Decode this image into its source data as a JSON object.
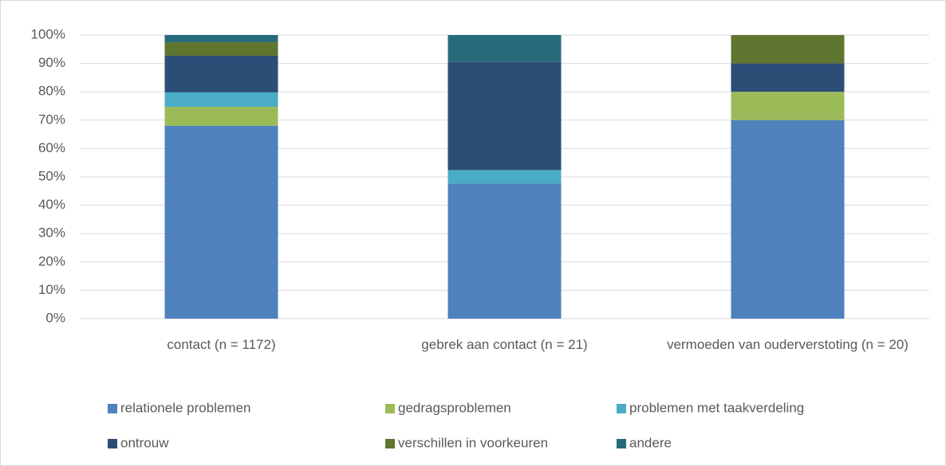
{
  "chart_data": {
    "type": "stacked_bar",
    "categories": [
      "contact (n = 1172)",
      "gebrek aan contact (n = 21)",
      "vermoeden van ouderverstoting (n = 20)"
    ],
    "series": [
      {
        "name": "relationele problemen",
        "color": "#4f81bd",
        "values": [
          68.0,
          47.6,
          70
        ]
      },
      {
        "name": "gedragsproblemen",
        "color": "#9bbb59",
        "values": [
          6.7,
          0,
          10
        ]
      },
      {
        "name": "problemen met taakverdeling",
        "color": "#4bacc6",
        "values": [
          5.1,
          4.8,
          0
        ]
      },
      {
        "name": "ontrouw",
        "color": "#2c4d75",
        "values": [
          12.9,
          38.1,
          10
        ]
      },
      {
        "name": "verschillen in voorkeuren",
        "color": "#5f7530",
        "values": [
          4.8,
          0,
          10
        ]
      },
      {
        "name": "andere",
        "color": "#276a7c",
        "values": [
          2.5,
          9.5,
          0
        ]
      }
    ],
    "ylim": [
      0,
      100
    ],
    "yticks": [
      {
        "value": 0,
        "label": "0%"
      },
      {
        "value": 10,
        "label": "10%"
      },
      {
        "value": 20,
        "label": "20%"
      },
      {
        "value": 30,
        "label": "30%"
      },
      {
        "value": 40,
        "label": "40%"
      },
      {
        "value": 50,
        "label": "50%"
      },
      {
        "value": 60,
        "label": "60%"
      },
      {
        "value": 70,
        "label": "70%"
      },
      {
        "value": 80,
        "label": "80%"
      },
      {
        "value": 90,
        "label": "90%"
      },
      {
        "value": 100,
        "label": "100%"
      }
    ],
    "grid": true,
    "legend": "bottom"
  }
}
